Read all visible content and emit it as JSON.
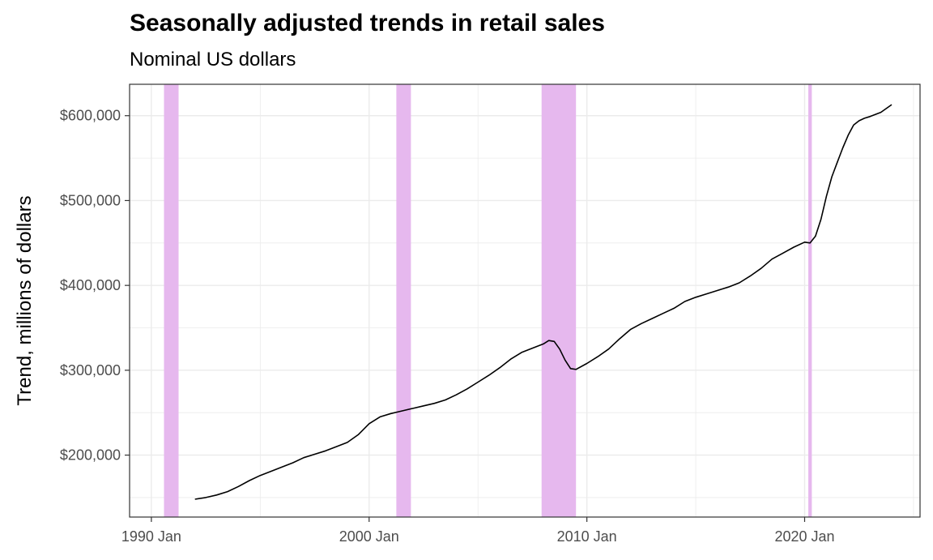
{
  "chart_data": {
    "type": "line",
    "title": "Seasonally adjusted trends in retail sales",
    "subtitle": "Nominal US dollars",
    "xlabel": "",
    "ylabel": "Trend, millions of dollars",
    "xlim": [
      1989.0,
      2025.3
    ],
    "ylim": [
      127000,
      637000
    ],
    "grid": true,
    "x_ticks": [
      1990,
      2000,
      2010,
      2020
    ],
    "x_tick_labels": [
      "1990 Jan",
      "2000 Jan",
      "2010 Jan",
      "2020 Jan"
    ],
    "y_ticks": [
      200000,
      300000,
      400000,
      500000,
      600000
    ],
    "y_tick_labels": [
      "$200,000",
      "$300,000",
      "$400,000",
      "$500,000",
      "$600,000"
    ],
    "recessions": [
      {
        "start": 1990.58,
        "end": 1991.25
      },
      {
        "start": 2001.25,
        "end": 2001.92
      },
      {
        "start": 2007.92,
        "end": 2009.5
      },
      {
        "start": 2020.17,
        "end": 2020.33
      }
    ],
    "colors": {
      "recession": "#e6b8ee",
      "line": "#000000",
      "grid": "#ebebeb"
    },
    "series": [
      {
        "x": [
          1992.0,
          1992.5,
          1993.0,
          1993.5,
          1994.0,
          1994.5,
          1995.0,
          1995.5,
          1996.0,
          1996.5,
          1997.0,
          1997.5,
          1998.0,
          1998.5,
          1999.0,
          1999.5,
          2000.0,
          2000.5,
          2001.0,
          2001.5,
          2002.0,
          2002.5,
          2003.0,
          2003.5,
          2004.0,
          2004.5,
          2005.0,
          2005.5,
          2006.0,
          2006.5,
          2007.0,
          2007.5,
          2008.0,
          2008.25,
          2008.5,
          2008.75,
          2009.0,
          2009.25,
          2009.5,
          2010.0,
          2010.5,
          2011.0,
          2011.5,
          2012.0,
          2012.5,
          2013.0,
          2013.5,
          2014.0,
          2014.5,
          2015.0,
          2015.5,
          2016.0,
          2016.5,
          2017.0,
          2017.5,
          2018.0,
          2018.5,
          2019.0,
          2019.5,
          2020.0,
          2020.25,
          2020.5,
          2020.75,
          2021.0,
          2021.25,
          2021.5,
          2021.75,
          2022.0,
          2022.25,
          2022.5,
          2022.75,
          2023.0,
          2023.5,
          2024.0
        ],
        "values": [
          148000,
          150000,
          153000,
          157000,
          163000,
          170000,
          176000,
          181000,
          186000,
          191000,
          197000,
          201000,
          205000,
          210000,
          215000,
          224000,
          237000,
          245000,
          249000,
          252000,
          255000,
          258000,
          261000,
          265000,
          271000,
          278000,
          286000,
          294000,
          303000,
          313000,
          321000,
          326000,
          331000,
          335000,
          334000,
          325000,
          312000,
          302000,
          301000,
          308000,
          316000,
          325000,
          337000,
          348000,
          355000,
          361000,
          367000,
          373000,
          381000,
          386000,
          390000,
          394000,
          398000,
          403000,
          411000,
          420000,
          431000,
          438000,
          445000,
          451000,
          450000,
          458000,
          478000,
          505000,
          528000,
          545000,
          562000,
          577000,
          589000,
          594000,
          597000,
          599000,
          604000,
          613000
        ]
      }
    ]
  }
}
